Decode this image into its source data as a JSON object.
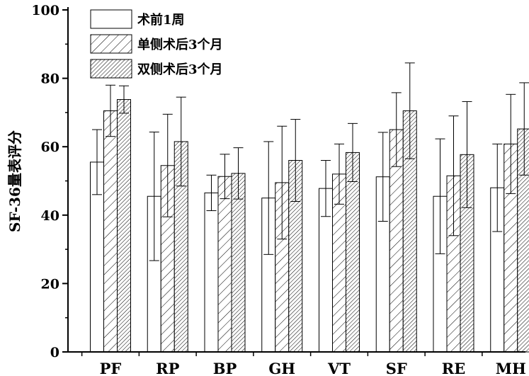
{
  "chart_data": {
    "type": "bar",
    "title": "",
    "xlabel": "",
    "ylabel": "SF-36量表评分",
    "ylim": [
      0,
      100
    ],
    "yticks": [
      0,
      20,
      40,
      60,
      80,
      100
    ],
    "grid": false,
    "legend_position": "top-left",
    "categories": [
      "PF",
      "RP",
      "BP",
      "GH",
      "VT",
      "SF",
      "RE",
      "MH"
    ],
    "series": [
      {
        "name": "术前1周",
        "pattern": "solid-white",
        "values": [
          55.5,
          45.5,
          46.5,
          45.0,
          47.8,
          51.2,
          45.5,
          48.0
        ],
        "errors": [
          9.5,
          18.8,
          5.2,
          16.5,
          8.2,
          13.0,
          16.8,
          12.8
        ]
      },
      {
        "name": "单侧术后3个月",
        "pattern": "sparse-diagonal",
        "values": [
          70.5,
          54.5,
          51.3,
          49.5,
          52.0,
          65.0,
          51.5,
          60.8
        ],
        "errors": [
          7.5,
          15.0,
          6.5,
          16.5,
          8.8,
          10.8,
          17.5,
          14.5
        ]
      },
      {
        "name": "双侧术后3个月",
        "pattern": "dense-diagonal",
        "values": [
          73.8,
          61.5,
          52.2,
          56.0,
          58.3,
          70.5,
          57.7,
          65.2
        ],
        "errors": [
          4.0,
          13.0,
          7.5,
          12.0,
          8.5,
          14.0,
          15.5,
          13.5
        ]
      }
    ]
  }
}
